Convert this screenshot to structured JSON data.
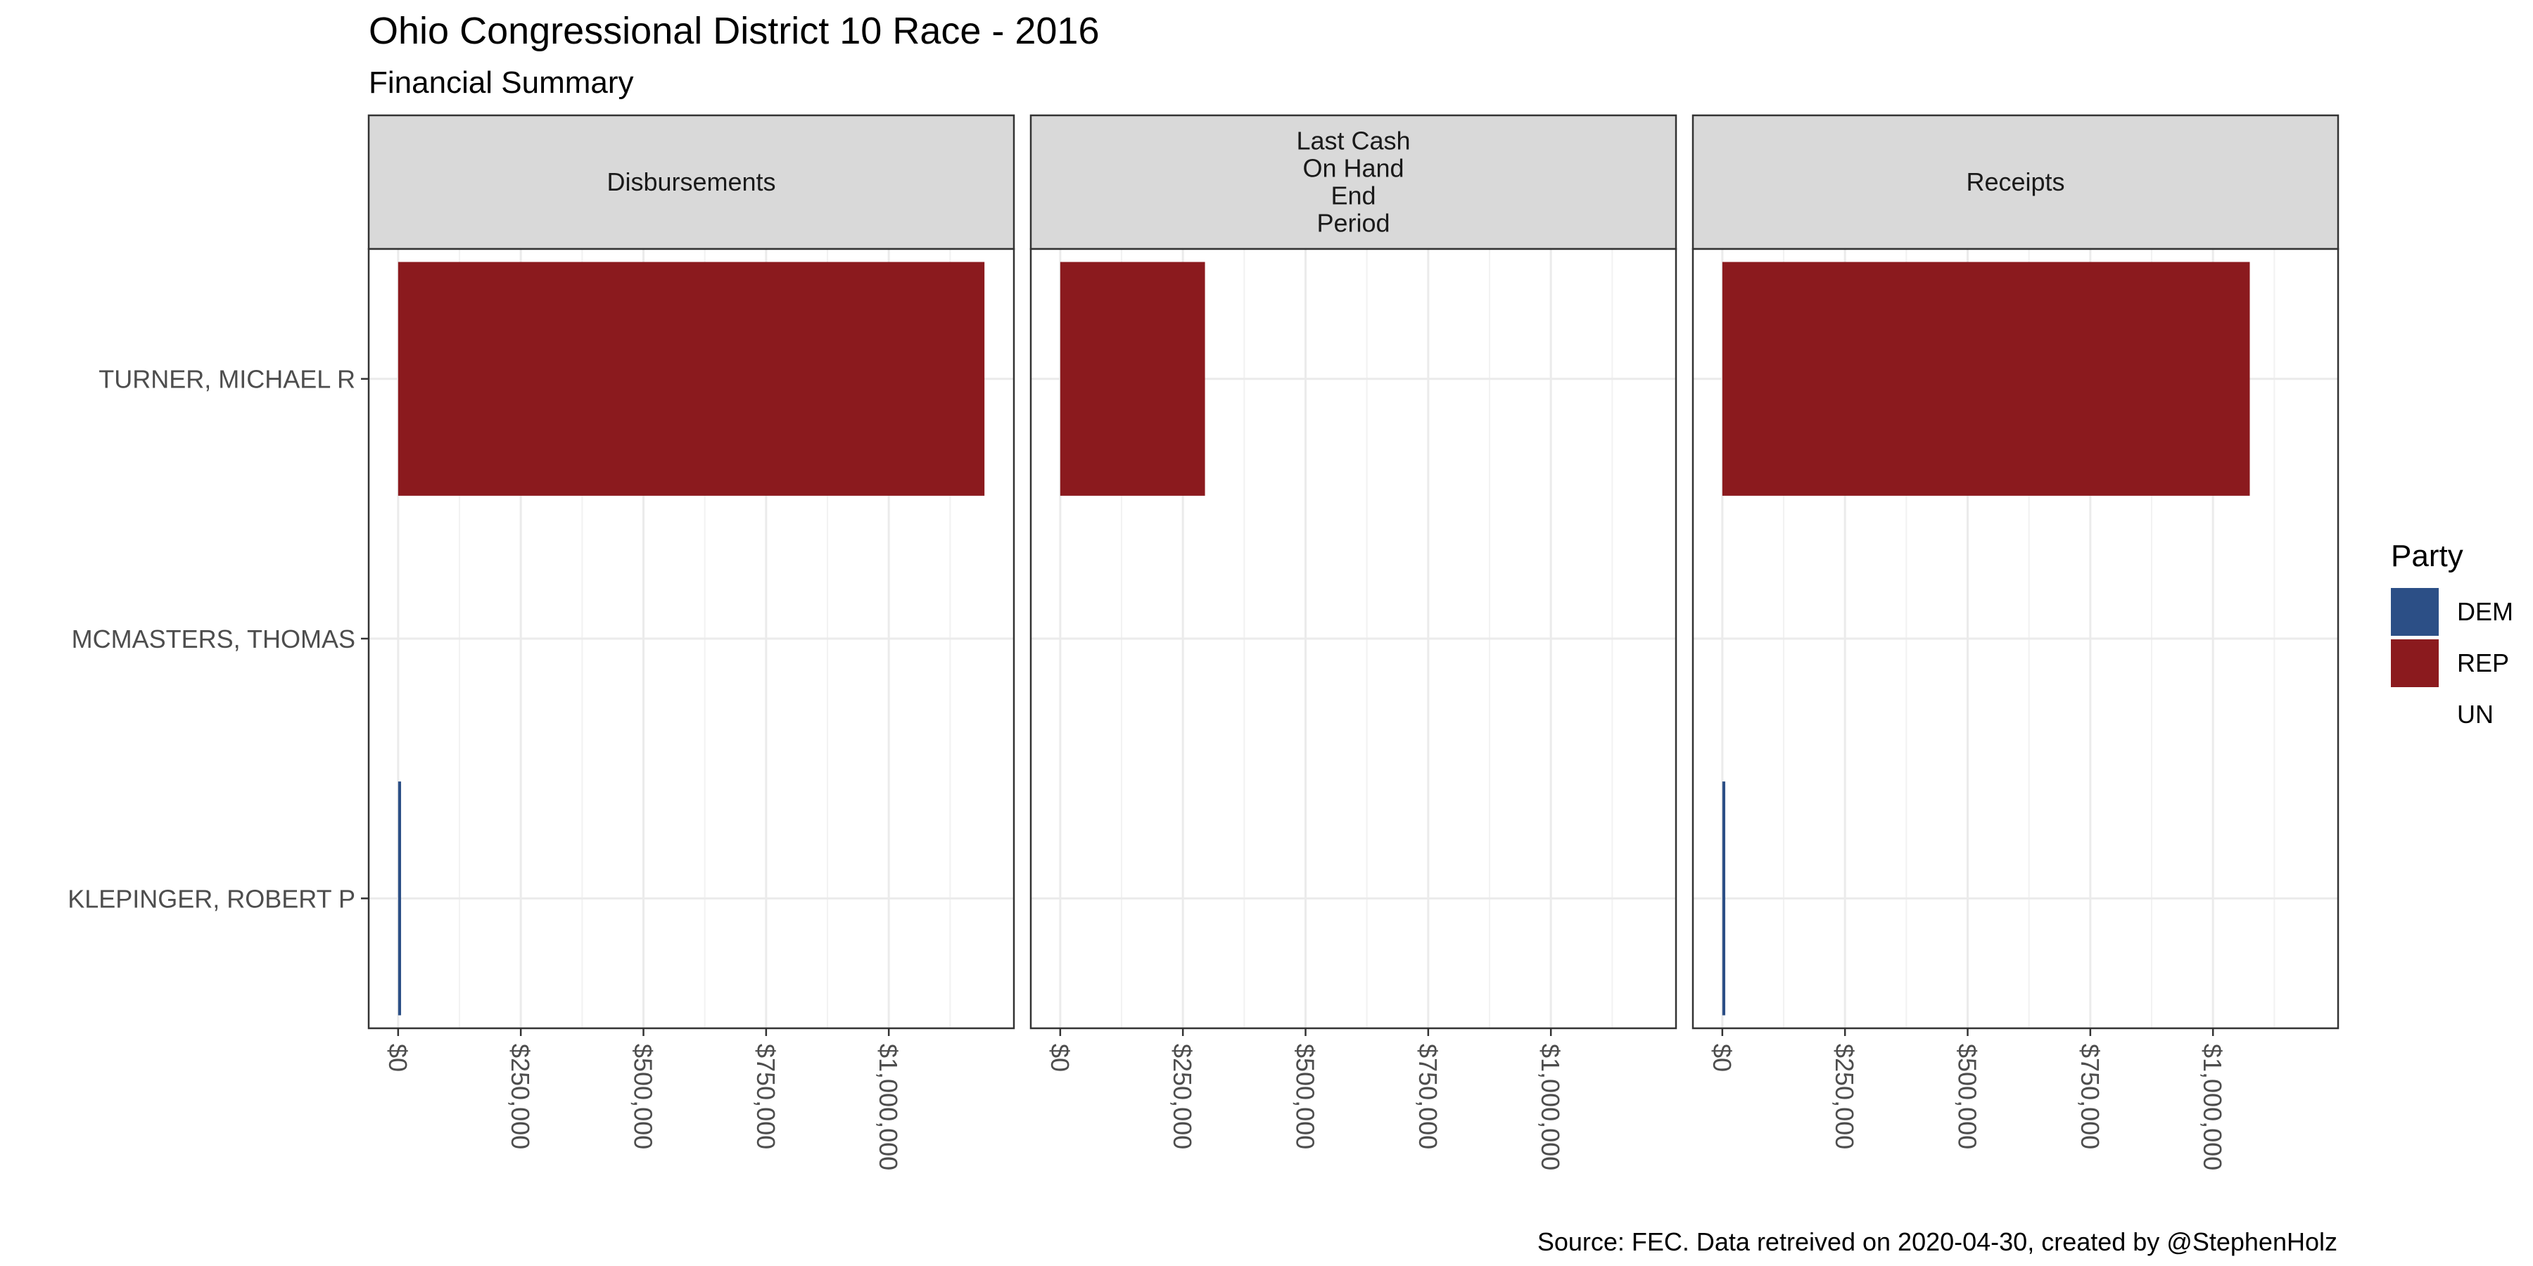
{
  "chart_data": {
    "type": "bar",
    "orientation": "horizontal",
    "title": "Ohio Congressional District 10 Race - 2016",
    "subtitle": "Financial Summary",
    "caption": "Source: FEC. Data retreived on 2020-04-30, created by @StephenHolz",
    "categories": [
      "TURNER, MICHAEL R",
      "MCMASTERS, THOMAS",
      "KLEPINGER, ROBERT P"
    ],
    "category_party": [
      "REP",
      "UN",
      "DEM"
    ],
    "facets": [
      {
        "label": "Disbursements",
        "values": [
          1195000,
          0,
          6000
        ]
      },
      {
        "label": "Last Cash\nOn Hand\nEnd\nPeriod",
        "values": [
          295000,
          0,
          0
        ]
      },
      {
        "label": "Receipts",
        "values": [
          1075000,
          0,
          6000
        ]
      }
    ],
    "x_ticks": [
      0,
      250000,
      500000,
      750000,
      1000000
    ],
    "x_tick_labels": [
      "$0",
      "$250,000",
      "$500,000",
      "$750,000",
      "$1,000,000"
    ],
    "xlim": [
      -60000,
      1255000
    ],
    "grid": true,
    "legend": {
      "title": "Party",
      "position": "right",
      "entries": [
        {
          "label": "DEM",
          "color": "#2C4F86"
        },
        {
          "label": "REP",
          "color": "#8B1A1E"
        },
        {
          "label": "UN",
          "color": null
        }
      ]
    },
    "colors": {
      "DEM": "#2C4F86",
      "REP": "#8B1A1E",
      "UN": null
    }
  }
}
